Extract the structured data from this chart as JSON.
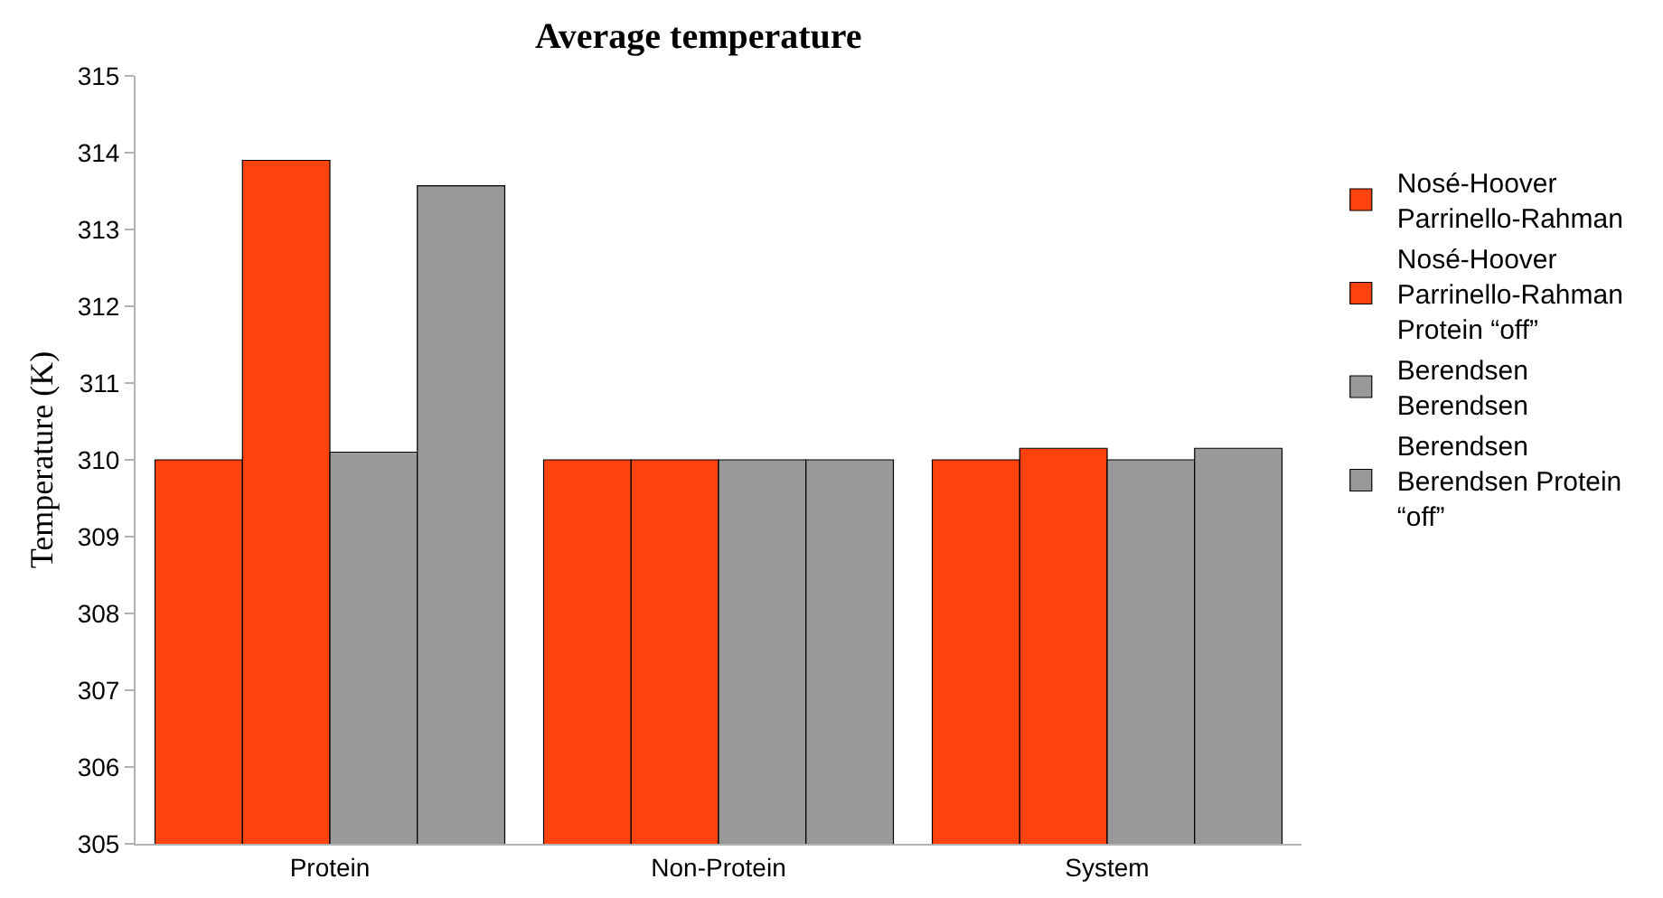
{
  "chart_data": {
    "type": "bar",
    "title": "Average temperature",
    "ylabel": "Temperature (K)",
    "categories": [
      "Protein",
      "Non-Protein",
      "System"
    ],
    "series": [
      {
        "name": "Nosé-Hoover Parrinello-Rahman",
        "color": "#ff420e",
        "values": [
          310,
          310,
          310
        ]
      },
      {
        "name": "Nosé-Hoover Parrinello-Rahman Protein “off”",
        "color": "#ff420e",
        "values": [
          313.9,
          310,
          310.15
        ]
      },
      {
        "name": "Berendsen Berendsen",
        "color": "#999999",
        "values": [
          310.1,
          310,
          310
        ]
      },
      {
        "name": "Berendsen Berendsen Protein “off”",
        "color": "#999999",
        "values": [
          313.57,
          310,
          310.15
        ]
      }
    ],
    "ylim": [
      305,
      315
    ],
    "yticks": [
      305,
      306,
      307,
      308,
      309,
      310,
      311,
      312,
      313,
      314,
      315
    ],
    "grid": false,
    "legend": "right"
  }
}
